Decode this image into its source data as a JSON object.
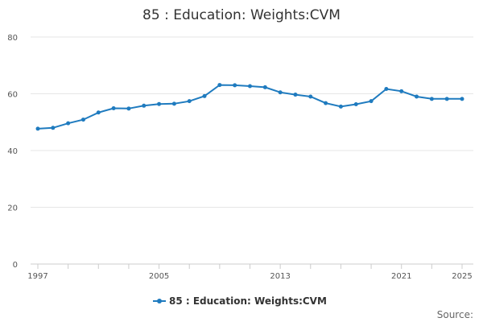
{
  "chart_data": {
    "type": "line",
    "title": "85 : Education: Weights:CVM",
    "xlabel": "",
    "ylabel": "",
    "x": [
      1997,
      1998,
      1999,
      2000,
      2001,
      2002,
      2003,
      2004,
      2005,
      2006,
      2007,
      2008,
      2009,
      2010,
      2011,
      2012,
      2013,
      2014,
      2015,
      2016,
      2017,
      2018,
      2019,
      2020,
      2021,
      2022,
      2023,
      2024,
      2025
    ],
    "series": [
      {
        "name": "85 : Education: Weights:CVM",
        "color": "#1f7bbf",
        "values": [
          47.7,
          48.0,
          49.6,
          50.9,
          53.4,
          54.9,
          54.8,
          55.8,
          56.4,
          56.5,
          57.4,
          59.2,
          63.1,
          63.0,
          62.7,
          62.3,
          60.5,
          59.7,
          59.0,
          56.7,
          55.5,
          56.3,
          57.4,
          61.7,
          60.9,
          59.0,
          58.2,
          58.2,
          58.2
        ]
      }
    ],
    "ylim": [
      0,
      80
    ],
    "y_ticks": [
      "0",
      "20",
      "40",
      "60",
      "80"
    ],
    "x_tick_labels": [
      "1997",
      "2005",
      "2013",
      "2021",
      "2025"
    ],
    "grid": true,
    "legend_placement": "bottom",
    "source_label": "Source:"
  }
}
